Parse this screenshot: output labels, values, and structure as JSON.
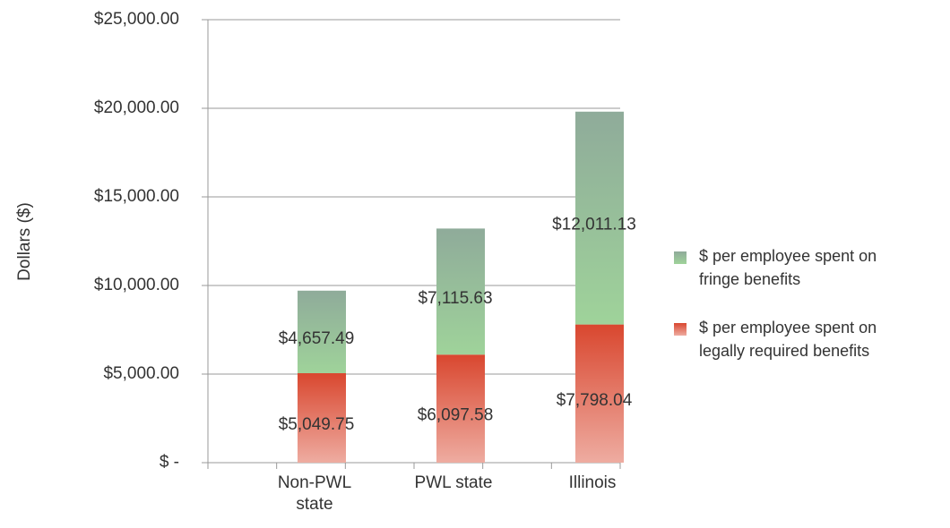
{
  "chart_data": {
    "type": "stacked_bar",
    "y_label": "Dollars ($)",
    "categories": [
      "Non-PWL state",
      "PWL state",
      "Illinois"
    ],
    "series": [
      {
        "name": "$ per employee spent on legally required benefits",
        "color": "#d9472f",
        "values": [
          5049.75,
          6097.58,
          7798.04
        ],
        "value_labels": [
          "$5,049.75",
          "$6,097.58",
          "$7,798.04"
        ]
      },
      {
        "name": "$ per employee spent on fringe benefits",
        "color": "#9fd39a",
        "values": [
          4657.49,
          7115.63,
          12011.13
        ],
        "value_labels": [
          "$4,657.49",
          "$7,115.63",
          "$12,011.13"
        ]
      }
    ],
    "ylim": [
      0,
      25000
    ],
    "yticks": [
      {
        "value": 0,
        "label": "$ -"
      },
      {
        "value": 5000,
        "label": "$5,000.00"
      },
      {
        "value": 10000,
        "label": "$10,000.00"
      },
      {
        "value": 15000,
        "label": "$15,000.00"
      },
      {
        "value": 20000,
        "label": "$20,000.00"
      },
      {
        "value": 25000,
        "label": "$25,000.00"
      }
    ],
    "grid": true,
    "legend": "right"
  }
}
